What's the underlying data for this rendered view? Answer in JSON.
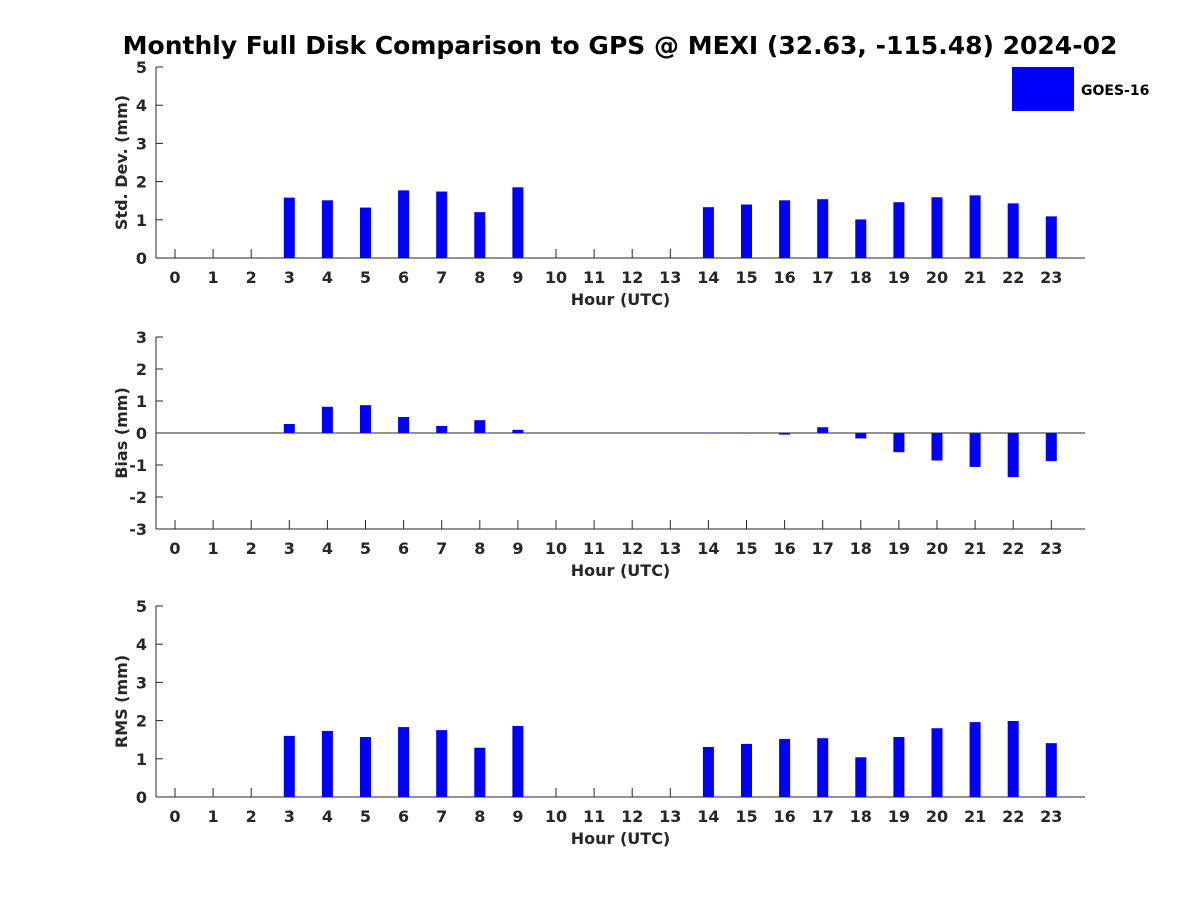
{
  "title": "Monthly Full Disk Comparison to GPS @ MEXI (32.63, -115.48) 2024-02",
  "legend": {
    "label": "GOES-16",
    "color": "#0000ff",
    "placement": "top-right"
  },
  "chart_data": [
    {
      "type": "bar",
      "ylabel": "Std. Dev. (mm)",
      "xlabel": "Hour (UTC)",
      "ylim": [
        0,
        5
      ],
      "yticks": [
        0,
        1,
        2,
        3,
        4,
        5
      ],
      "categories": [
        "0",
        "1",
        "2",
        "3",
        "4",
        "5",
        "6",
        "7",
        "8",
        "9",
        "10",
        "11",
        "12",
        "13",
        "14",
        "15",
        "16",
        "17",
        "18",
        "19",
        "20",
        "21",
        "22",
        "23"
      ],
      "series": [
        {
          "name": "GOES-16",
          "color": "#0000ff",
          "values": [
            null,
            null,
            null,
            1.58,
            1.51,
            1.32,
            1.77,
            1.74,
            1.2,
            1.85,
            null,
            null,
            null,
            null,
            1.33,
            1.4,
            1.51,
            1.54,
            1.01,
            1.46,
            1.59,
            1.64,
            1.43,
            1.09
          ]
        }
      ]
    },
    {
      "type": "bar",
      "ylabel": "Bias (mm)",
      "xlabel": "Hour (UTC)",
      "ylim": [
        -3,
        3
      ],
      "yticks": [
        -3,
        -2,
        -1,
        0,
        1,
        2,
        3
      ],
      "categories": [
        "0",
        "1",
        "2",
        "3",
        "4",
        "5",
        "6",
        "7",
        "8",
        "9",
        "10",
        "11",
        "12",
        "13",
        "14",
        "15",
        "16",
        "17",
        "18",
        "19",
        "20",
        "21",
        "22",
        "23"
      ],
      "series": [
        {
          "name": "GOES-16",
          "color": "#0000ff",
          "values": [
            null,
            null,
            null,
            0.28,
            0.82,
            0.87,
            0.5,
            0.22,
            0.4,
            0.1,
            null,
            null,
            null,
            null,
            0.01,
            0.0,
            -0.05,
            0.18,
            -0.17,
            -0.6,
            -0.86,
            -1.06,
            -1.38,
            -0.88
          ]
        }
      ]
    },
    {
      "type": "bar",
      "ylabel": "RMS (mm)",
      "xlabel": "Hour (UTC)",
      "ylim": [
        0,
        5
      ],
      "yticks": [
        0,
        1,
        2,
        3,
        4,
        5
      ],
      "categories": [
        "0",
        "1",
        "2",
        "3",
        "4",
        "5",
        "6",
        "7",
        "8",
        "9",
        "10",
        "11",
        "12",
        "13",
        "14",
        "15",
        "16",
        "17",
        "18",
        "19",
        "20",
        "21",
        "22",
        "23"
      ],
      "series": [
        {
          "name": "GOES-16",
          "color": "#0000ff",
          "values": [
            null,
            null,
            null,
            1.6,
            1.73,
            1.57,
            1.83,
            1.75,
            1.29,
            1.86,
            null,
            null,
            null,
            null,
            1.31,
            1.39,
            1.52,
            1.54,
            1.04,
            1.57,
            1.8,
            1.96,
            1.99,
            1.41
          ]
        }
      ]
    }
  ]
}
